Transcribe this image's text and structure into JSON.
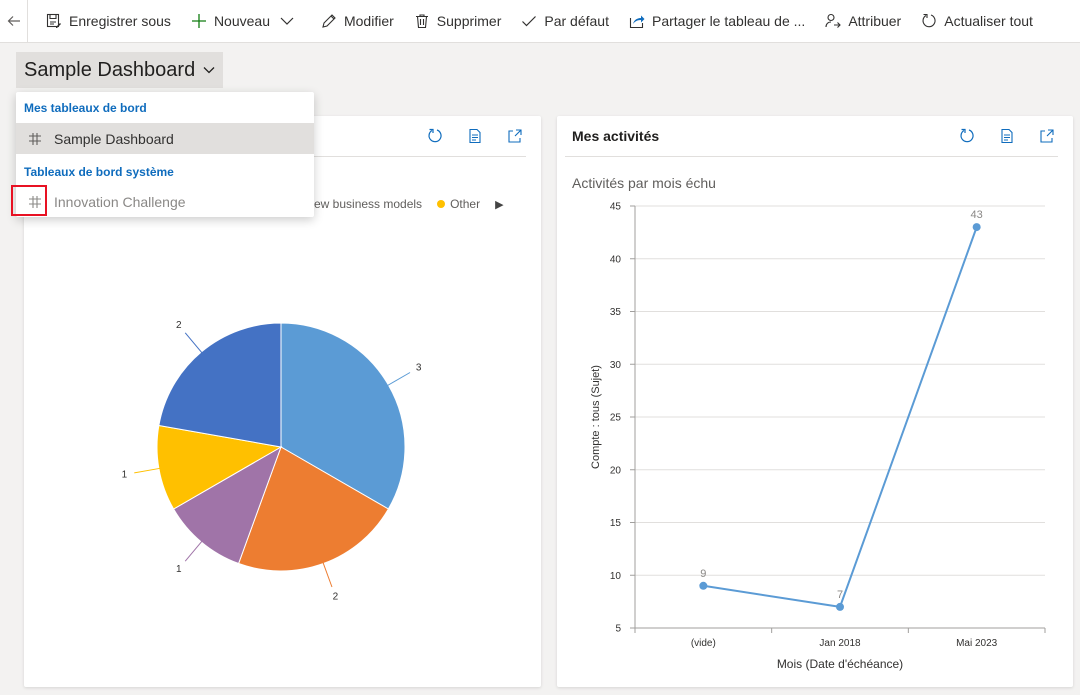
{
  "toolbar": {
    "save_as": "Enregistrer sous",
    "new": "Nouveau",
    "edit": "Modifier",
    "delete": "Supprimer",
    "default": "Par défaut",
    "share": "Partager le tableau de ...",
    "assign": "Attribuer",
    "refresh_all": "Actualiser tout"
  },
  "dashboard": {
    "title": "Sample Dashboard"
  },
  "dropdown": {
    "my_group": "Mes tableaux de bord",
    "my_items": [
      "Sample Dashboard"
    ],
    "system_group": "Tableaux de bord système",
    "system_items": [
      "Innovation Challenge"
    ]
  },
  "left_card": {
    "legend": [
      {
        "label": "ew business models",
        "color": "#4472c4"
      },
      {
        "label": "Other",
        "color": "#ffc000"
      }
    ]
  },
  "right_card": {
    "title": "Mes activités"
  },
  "chart_data": [
    {
      "type": "pie",
      "values": [
        3,
        2,
        1,
        1,
        2
      ],
      "colors": [
        "#5b9bd5",
        "#ed7d31",
        "#a074a8",
        "#ffc000",
        "#4472c4"
      ],
      "data_labels": [
        "3",
        "2",
        "1",
        "1",
        "2"
      ]
    },
    {
      "type": "line",
      "title": "Activités par mois échu",
      "categories": [
        "(vide)",
        "Jan 2018",
        "Mai 2023"
      ],
      "values": [
        9,
        7,
        43
      ],
      "color": "#5b9bd5",
      "xlabel": "Mois  (Date d'échéance)",
      "ylabel": "Compte : tous (Sujet)",
      "ylim": [
        5,
        45
      ],
      "yticks": [
        5,
        10,
        15,
        20,
        25,
        30,
        35,
        40,
        45
      ],
      "grid": true
    }
  ]
}
